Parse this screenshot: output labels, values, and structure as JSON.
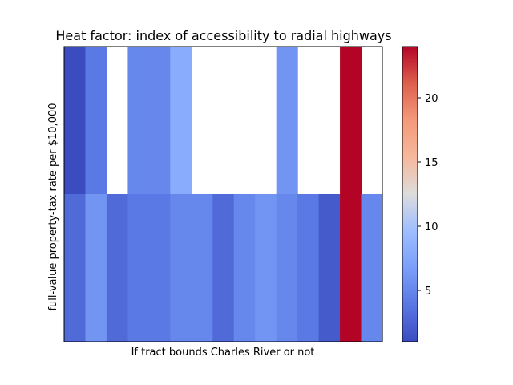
{
  "chart_data": {
    "type": "heatmap",
    "title": "Heat factor: index of accessibility to radial highways",
    "xlabel": "If tract bounds Charles River or not",
    "ylabel": "full-value property-tax rate per $10,000",
    "colormap": "coolwarm",
    "vmin": 1,
    "vmax": 24,
    "rows": [
      [
        1,
        4,
        null,
        5,
        5,
        8,
        null,
        null,
        null,
        null,
        6,
        null,
        null,
        24,
        null
      ],
      [
        3,
        6,
        3,
        4,
        4,
        5,
        5,
        3,
        5,
        6,
        5,
        4,
        2,
        24,
        5
      ]
    ],
    "colorbar_ticks": [
      5,
      10,
      15,
      20
    ]
  }
}
